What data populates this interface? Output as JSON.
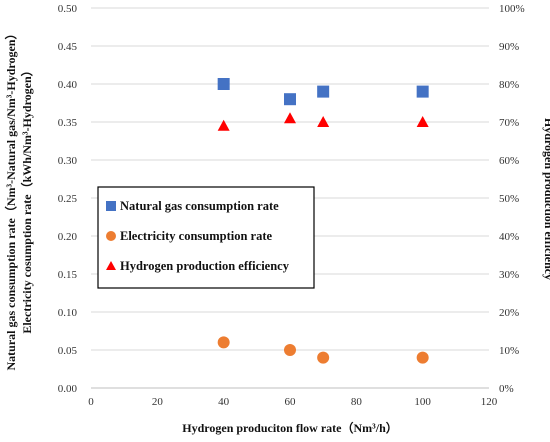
{
  "chart_data": {
    "type": "scatter",
    "xlabel": "Hydrogen produciton flow rate（Nm³/h）",
    "ylabel_left_line1": "Natural gas consumption rate（Nm³-Natural gas/Nm³-Hydrogen）",
    "ylabel_left_line2": "Electricity cosumption rate（kWh/Nm³-Hydrogen）",
    "ylabel_right": "Hydrogen production efficiency",
    "xlim": [
      0,
      120
    ],
    "ylim_left": [
      0,
      0.5
    ],
    "ylim_right": [
      0,
      100
    ],
    "x_ticks": [
      "0",
      "20",
      "40",
      "60",
      "80",
      "100",
      "120"
    ],
    "y_left_ticks": [
      "0.00",
      "0.05",
      "0.10",
      "0.15",
      "0.20",
      "0.25",
      "0.30",
      "0.35",
      "0.40",
      "0.45",
      "0.50"
    ],
    "y_right_ticks": [
      "0%",
      "10%",
      "20%",
      "30%",
      "40%",
      "50%",
      "60%",
      "70%",
      "80%",
      "90%",
      "100%"
    ],
    "grid": "horizontal",
    "legend_position": "left-middle",
    "series": [
      {
        "name": "Natural gas consumption rate",
        "axis": "left",
        "marker": "square",
        "color": "#4472C4",
        "x": [
          40,
          60,
          70,
          100
        ],
        "y": [
          0.4,
          0.38,
          0.39,
          0.39
        ]
      },
      {
        "name": "Electricity consumption rate",
        "axis": "left",
        "marker": "circle",
        "color": "#ED7D31",
        "x": [
          40,
          60,
          70,
          100
        ],
        "y": [
          0.06,
          0.05,
          0.04,
          0.04
        ]
      },
      {
        "name": "Hydrogen production efficiency",
        "axis": "right",
        "marker": "triangle",
        "color": "#FF0000",
        "x": [
          40,
          60,
          70,
          100
        ],
        "y": [
          69,
          71,
          70,
          70
        ]
      }
    ]
  }
}
